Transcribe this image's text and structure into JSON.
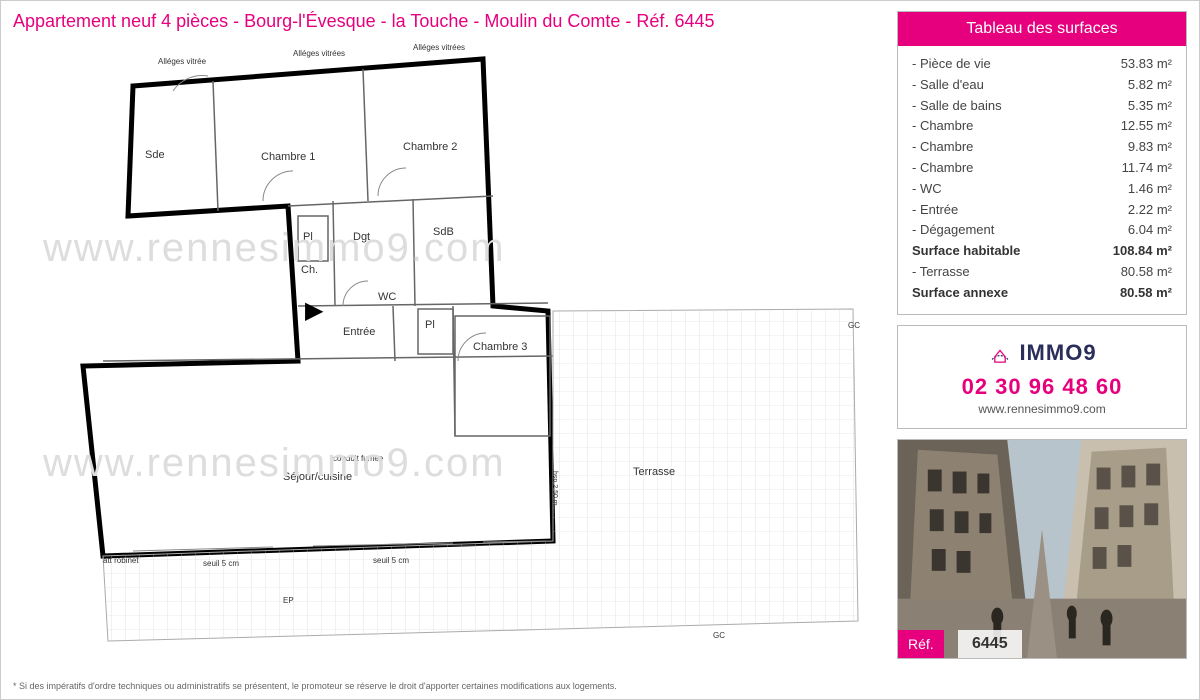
{
  "title": "Appartement neuf 4 pièces - Bourg-l'Évesque - la Touche - Moulin du Comte - Réf. 6445",
  "watermark": "www.rennesimmo9.com",
  "disclaimer": "* Si des impératifs d'ordre techniques ou administratifs se présentent, le promoteur se réserve le droit d'apporter certaines modifications aux logements.",
  "floorplan": {
    "rooms": {
      "sde": "Sde",
      "chambre1": "Chambre 1",
      "chambre2": "Chambre 2",
      "chambre3": "Chambre 3",
      "pl1": "Pl",
      "pl2": "Pl",
      "dgt": "Dgt",
      "sdb": "SdB",
      "ch": "Ch.",
      "wc": "WC",
      "entree": "Entrée",
      "sejour": "Séjour/cuisine",
      "terrasse": "Terrasse",
      "conduit": "conduit fumée",
      "alleges1": "Alléges vitrée",
      "alleges2": "Alléges vitrées",
      "alleges3": "Alléges vitrées",
      "seuil1": "seuil 5 cm",
      "seuil2": "seuil 5 cm",
      "robinet": "att robinet",
      "gc": "GC",
      "ep": "EP",
      "hsp": "hsp 2.50 m"
    },
    "colors": {
      "wall": "#000000",
      "thin": "#888888",
      "hatch": "#bbbbbb",
      "bg": "#ffffff"
    }
  },
  "surfaces": {
    "header": "Tableau des surfaces",
    "rows": [
      {
        "label": "- Pièce de vie",
        "area": "53.83 m²",
        "bold": false
      },
      {
        "label": "- Salle d'eau",
        "area": "5.82 m²",
        "bold": false
      },
      {
        "label": "- Salle de bains",
        "area": "5.35 m²",
        "bold": false
      },
      {
        "label": "- Chambre",
        "area": "12.55 m²",
        "bold": false
      },
      {
        "label": "- Chambre",
        "area": "9.83 m²",
        "bold": false
      },
      {
        "label": "- Chambre",
        "area": "11.74 m²",
        "bold": false
      },
      {
        "label": "- WC",
        "area": "1.46 m²",
        "bold": false
      },
      {
        "label": "- Entrée",
        "area": "2.22 m²",
        "bold": false
      },
      {
        "label": "- Dégagement",
        "area": "6.04 m²",
        "bold": false
      },
      {
        "label": "Surface habitable",
        "area": "108.84 m²",
        "bold": true
      },
      {
        "label": "- Terrasse",
        "area": "80.58 m²",
        "bold": false
      },
      {
        "label": "Surface annexe",
        "area": "80.58 m²",
        "bold": true
      }
    ]
  },
  "contact": {
    "brand": "IMMO9",
    "phone": "02 30 96 48 60",
    "website": "www.rennesimmo9.com",
    "logo_colors": {
      "house": "#e6007e",
      "arc": "#2a2e5a"
    }
  },
  "ref": {
    "label": "Réf.",
    "number": "6445"
  },
  "photo": {
    "sky": "#b8c4cc",
    "building_light": "#c9bfae",
    "building_dark": "#6b6258",
    "street": "#8a8074",
    "shadow": "#3a352e"
  }
}
